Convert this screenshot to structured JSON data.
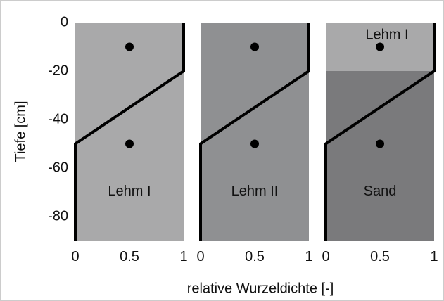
{
  "chart_data": {
    "type": "line",
    "xlabel": "relative Wurzeldichte [-]",
    "ylabel": "Tiefe [cm]",
    "xlim": [
      0,
      1
    ],
    "ylim": [
      -90,
      0
    ],
    "xticks": [
      0,
      0.5,
      1
    ],
    "yticks": [
      0,
      -20,
      -40,
      -60,
      -80
    ],
    "line_color": "#000000",
    "panels": [
      {
        "layers": [
          {
            "label": "Lehm I",
            "top": 0,
            "color": "#a9a9aa"
          }
        ],
        "x": [
          0,
          0,
          1,
          1
        ],
        "values": [
          -90,
          -50,
          -20,
          0
        ],
        "points": {
          "x": [
            0.5,
            0.5
          ],
          "values": [
            -10,
            -50
          ]
        }
      },
      {
        "layers": [
          {
            "label": "Lehm II",
            "top": 0,
            "color": "#8f9092"
          }
        ],
        "x": [
          0,
          0,
          1,
          1
        ],
        "values": [
          -90,
          -50,
          -20,
          0
        ],
        "points": {
          "x": [
            0.5,
            0.5
          ],
          "values": [
            -10,
            -50
          ]
        }
      },
      {
        "layers": [
          {
            "label": "Lehm I",
            "top": 0,
            "color": "#a9a9aa"
          },
          {
            "label": "Sand",
            "top": -20,
            "color": "#7a7a7c"
          }
        ],
        "x": [
          0,
          0,
          1,
          1
        ],
        "values": [
          -90,
          -50,
          -20,
          0
        ],
        "points": {
          "x": [
            0.5,
            0.5
          ],
          "values": [
            -10,
            -50
          ]
        }
      }
    ]
  }
}
